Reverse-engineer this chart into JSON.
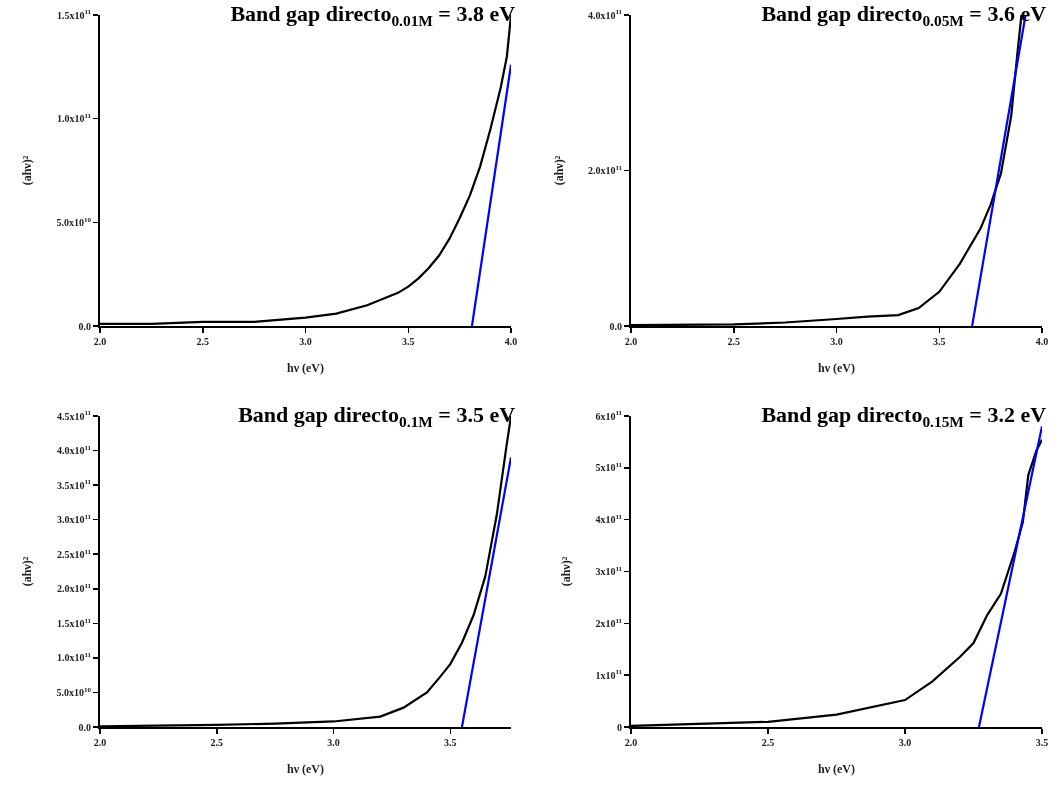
{
  "chart_data": [
    {
      "type": "line",
      "title": "Band gap directo$_{0.01M}$ = 3.8 eV",
      "xlabel": "hν (eV)",
      "ylabel": "(ahν)²",
      "xlim": [
        2,
        4
      ],
      "xticks": [
        {
          "value": 2,
          "label": "2.0"
        },
        {
          "value": 2.5,
          "label": "2.5"
        },
        {
          "value": 3,
          "label": "3.0"
        },
        {
          "value": 3.5,
          "label": "3.5"
        },
        {
          "value": 4,
          "label": "4.0"
        }
      ],
      "ylim": [
        0,
        150000000000.0
      ],
      "yticks": [
        {
          "value": 0,
          "label": "0.0"
        },
        {
          "value": 50000000000.0,
          "label": "5.0x10$^{10}$"
        },
        {
          "value": 100000000000.0,
          "label": "1.0x10$^{11}$"
        },
        {
          "value": 150000000000.0,
          "label": "1.5x10$^{11}$"
        }
      ],
      "series": [
        {
          "color": "#000000",
          "x": [
            2.0,
            2.25,
            2.5,
            2.75,
            3.0,
            3.15,
            3.3,
            3.45,
            3.5,
            3.55,
            3.6,
            3.65,
            3.7,
            3.75,
            3.8,
            3.85,
            3.9,
            3.95,
            3.98,
            4.0
          ],
          "values": [
            1000000000.0,
            1000000000.0,
            2000000000.0,
            2000000000.0,
            4000000000.0,
            6000000000.0,
            10000000000.0,
            16000000000.0,
            19000000000.0,
            23000000000.0,
            28000000000.0,
            34000000000.0,
            42000000000.0,
            52000000000.0,
            63000000000.0,
            77000000000.0,
            95000000000.0,
            115000000000.0,
            130000000000.0,
            150000000000.0
          ]
        },
        {
          "type": "line",
          "color": "#0000ff",
          "x": [
            3.81,
            4.0
          ],
          "values": [
            0,
            126000000000.0
          ]
        }
      ]
    },
    {
      "type": "line",
      "title": "Band gap directo$_{0.05M}$ = 3.6 eV",
      "xlabel": "hν (eV)",
      "ylabel": "(ahν)²",
      "xlim": [
        2,
        4
      ],
      "xticks": [
        {
          "value": 2,
          "label": "2.0"
        },
        {
          "value": 2.5,
          "label": "2.5"
        },
        {
          "value": 3,
          "label": "3.0"
        },
        {
          "value": 3.5,
          "label": "3.5"
        },
        {
          "value": 4,
          "label": "4.0"
        }
      ],
      "ylim": [
        0,
        400000000000.0
      ],
      "yticks": [
        {
          "value": 0,
          "label": "0.0"
        },
        {
          "value": 200000000000.0,
          "label": "2.0x10$^{11}$"
        },
        {
          "value": 400000000000.0,
          "label": "4.0x10$^{11}$"
        }
      ],
      "series": [
        {
          "color": "#000000",
          "x": [
            2.0,
            2.5,
            2.75,
            3.0,
            3.15,
            3.3,
            3.4,
            3.5,
            3.6,
            3.7,
            3.75,
            3.8,
            3.85,
            3.88,
            3.9
          ],
          "values": [
            1000000000.0,
            2000000000.0,
            4500000000.0,
            9000000000.0,
            12000000000.0,
            14000000000.0,
            23000000000.0,
            44000000000.0,
            80000000000.0,
            125000000000.0,
            156000000000.0,
            196000000000.0,
            270000000000.0,
            350000000000.0,
            400000000000.0
          ]
        },
        {
          "type": "line",
          "color": "#0000ff",
          "x": [
            3.66,
            3.92
          ],
          "values": [
            0,
            400000000000.0
          ]
        }
      ]
    },
    {
      "type": "line",
      "title": "Band gap directo$_{0.1M}$ = 3.5 eV",
      "xlabel": "hν (eV)",
      "ylabel": "(ahν)²",
      "xlim": [
        2,
        3.76
      ],
      "xticks": [
        {
          "value": 2,
          "label": "2.0"
        },
        {
          "value": 2.5,
          "label": "2.5"
        },
        {
          "value": 3,
          "label": "3.0"
        },
        {
          "value": 3.5,
          "label": "3.5"
        }
      ],
      "ylim": [
        0,
        450000000000.0
      ],
      "yticks": [
        {
          "value": 0,
          "label": "0.0"
        },
        {
          "value": 50000000000.0,
          "label": "5.0x10$^{10}$"
        },
        {
          "value": 100000000000.0,
          "label": "1.0x10$^{11}$"
        },
        {
          "value": 150000000000.0,
          "label": "1.5x10$^{11}$"
        },
        {
          "value": 200000000000.0,
          "label": "2.0x10$^{11}$"
        },
        {
          "value": 250000000000.0,
          "label": "2.5x10$^{11}$"
        },
        {
          "value": 300000000000.0,
          "label": "3.0x10$^{11}$"
        },
        {
          "value": 350000000000.0,
          "label": "3.5x10$^{11}$"
        },
        {
          "value": 400000000000.0,
          "label": "4.0x10$^{11}$"
        },
        {
          "value": 450000000000.0,
          "label": "4.5x10$^{11}$"
        }
      ],
      "series": [
        {
          "color": "#000000",
          "x": [
            2.0,
            2.5,
            2.75,
            3.0,
            3.2,
            3.3,
            3.4,
            3.45,
            3.5,
            3.55,
            3.6,
            3.65,
            3.7,
            3.74,
            3.76
          ],
          "values": [
            1000000000.0,
            3000000000.0,
            5000000000.0,
            8000000000.0,
            15000000000.0,
            28000000000.0,
            50000000000.0,
            70000000000.0,
            91000000000.0,
            122000000000.0,
            162000000000.0,
            218000000000.0,
            309000000000.0,
            405000000000.0,
            450000000000.0
          ]
        },
        {
          "type": "line",
          "color": "#0000ff",
          "x": [
            3.55,
            3.76
          ],
          "values": [
            0,
            390000000000.0
          ]
        }
      ]
    },
    {
      "type": "line",
      "title": "Band gap directo$_{0.15M}$ = 3.2 eV",
      "xlabel": "hν (eV)",
      "ylabel": "(ahν)²",
      "xlim": [
        2,
        3.5
      ],
      "xticks": [
        {
          "value": 2,
          "label": "2.0"
        },
        {
          "value": 2.5,
          "label": "2.5"
        },
        {
          "value": 3,
          "label": "3.0"
        },
        {
          "value": 3.5,
          "label": "3.5"
        }
      ],
      "ylim": [
        0,
        600000000000.0
      ],
      "yticks": [
        0,
        {
          "value": 100000000000.0,
          "label": "1x10$^{11}$"
        },
        {
          "value": 200000000000.0,
          "label": "2x10$^{11}$"
        },
        {
          "value": 300000000000.0,
          "label": "3x10$^{11}$"
        },
        {
          "value": 400000000000.0,
          "label": "4x10$^{11}$"
        },
        {
          "value": 500000000000.0,
          "label": "5x10$^{11}$"
        },
        {
          "value": 600000000000.0,
          "label": "6x10$^{11}$"
        }
      ],
      "series": [
        {
          "color": "#000000",
          "x": [
            2.0,
            2.5,
            2.75,
            3.0,
            3.1,
            3.2,
            3.25,
            3.3,
            3.35,
            3.4,
            3.43,
            3.45,
            3.48,
            3.5
          ],
          "values": [
            2000000000.0,
            10000000000.0,
            24000000000.0,
            52000000000.0,
            88000000000.0,
            135000000000.0,
            162000000000.0,
            216000000000.0,
            257000000000.0,
            338000000000.0,
            395000000000.0,
            486000000000.0,
            534000000000.0,
            554000000000.0
          ]
        },
        {
          "type": "line",
          "color": "#0000ff",
          "x": [
            3.27,
            3.5
          ],
          "values": [
            0,
            580000000000.0
          ]
        }
      ]
    }
  ]
}
